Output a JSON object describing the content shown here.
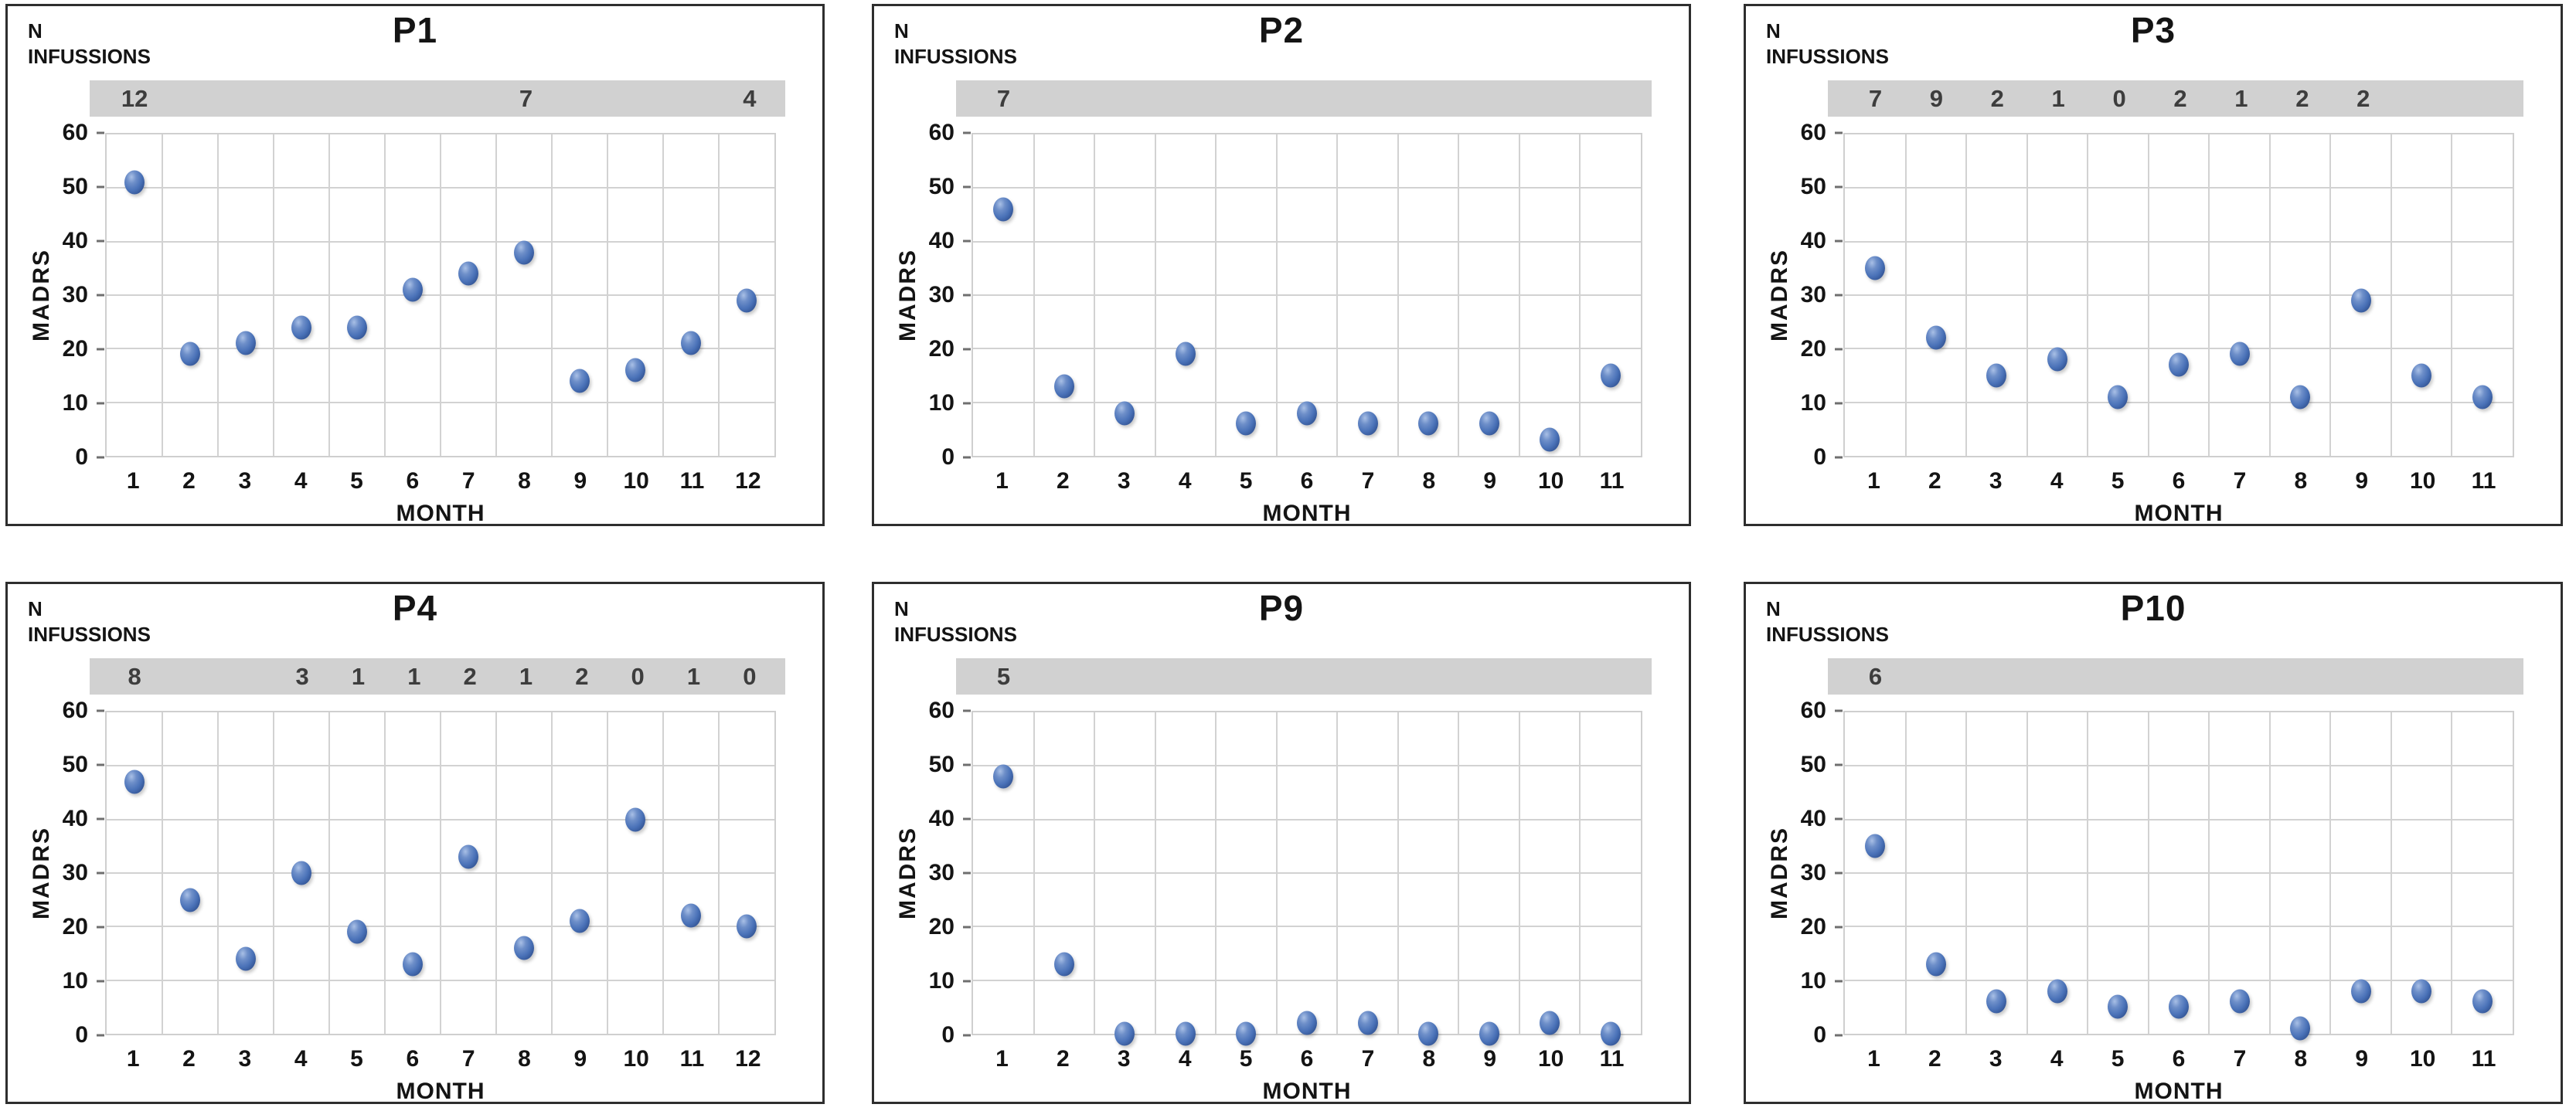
{
  "labels": {
    "n_infusions_line1": "N",
    "n_infusions_line2": "INFUSSIONS",
    "x_axis": "MONTH",
    "y_axis": "MADRS"
  },
  "colors": {
    "point_base": "#4a72b8",
    "point_highlight": "#a9c0e6",
    "point_edge": "#253f73",
    "infusion_bar": "#d1d1d1",
    "gridline": "#d2d2d2",
    "panel_border": "#2e2e2e",
    "text": "#141414",
    "infusion_text": "#3d3d3d"
  },
  "axes": {
    "ylim": [
      0,
      60
    ],
    "yticks": [
      60,
      50,
      40,
      30,
      20,
      10,
      0
    ],
    "grid": true
  },
  "chart_data": [
    {
      "type": "scatter",
      "title": "P1",
      "xlabel": "MONTH",
      "ylabel": "MADRS",
      "ylim": [
        0,
        60
      ],
      "x": [
        1,
        2,
        3,
        4,
        5,
        6,
        7,
        8,
        9,
        10,
        11,
        12
      ],
      "values": [
        51,
        19,
        21,
        24,
        24,
        31,
        34,
        38,
        14,
        16,
        21,
        29
      ],
      "infusions_by_month": {
        "1": "12",
        "8": "7",
        "12": "4"
      }
    },
    {
      "type": "scatter",
      "title": "P2",
      "xlabel": "MONTH",
      "ylabel": "MADRS",
      "ylim": [
        0,
        60
      ],
      "x": [
        1,
        2,
        3,
        4,
        5,
        6,
        7,
        8,
        9,
        10,
        11
      ],
      "values": [
        46,
        13,
        8,
        19,
        6,
        8,
        6,
        6,
        6,
        3,
        15
      ],
      "infusions_by_month": {
        "1": "7"
      }
    },
    {
      "type": "scatter",
      "title": "P3",
      "xlabel": "MONTH",
      "ylabel": "MADRS",
      "ylim": [
        0,
        60
      ],
      "x": [
        1,
        2,
        3,
        4,
        5,
        6,
        7,
        8,
        9,
        10,
        11
      ],
      "values": [
        35,
        22,
        15,
        18,
        11,
        17,
        19,
        11,
        29,
        15,
        11
      ],
      "infusions_by_month": {
        "1": "7",
        "2": "9",
        "3": "2",
        "4": "1",
        "5": "0",
        "6": "2",
        "7": "1",
        "8": "2",
        "9": "2"
      }
    },
    {
      "type": "scatter",
      "title": "P4",
      "xlabel": "MONTH",
      "ylabel": "MADRS",
      "ylim": [
        0,
        60
      ],
      "x": [
        1,
        2,
        3,
        4,
        5,
        6,
        7,
        8,
        9,
        10,
        11,
        12
      ],
      "values": [
        47,
        25,
        14,
        30,
        19,
        13,
        33,
        16,
        21,
        40,
        22,
        20
      ],
      "infusions_by_month": {
        "1": "8",
        "4": "3",
        "5": "1",
        "6": "1",
        "7": "2",
        "8": "1",
        "9": "2",
        "10": "0",
        "11": "1",
        "12": "0"
      }
    },
    {
      "type": "scatter",
      "title": "P9",
      "xlabel": "MONTH",
      "ylabel": "MADRS",
      "ylim": [
        0,
        60
      ],
      "x": [
        1,
        2,
        3,
        4,
        5,
        6,
        7,
        8,
        9,
        10,
        11
      ],
      "values": [
        48,
        13,
        0,
        0,
        0,
        2,
        2,
        0,
        0,
        2,
        0
      ],
      "infusions_by_month": {
        "1": "5"
      }
    },
    {
      "type": "scatter",
      "title": "P10",
      "xlabel": "MONTH",
      "ylabel": "MADRS",
      "ylim": [
        0,
        60
      ],
      "x": [
        1,
        2,
        3,
        4,
        5,
        6,
        7,
        8,
        9,
        10,
        11
      ],
      "values": [
        35,
        13,
        6,
        8,
        5,
        5,
        6,
        1,
        8,
        8,
        6
      ],
      "infusions_by_month": {
        "1": "6"
      }
    }
  ]
}
